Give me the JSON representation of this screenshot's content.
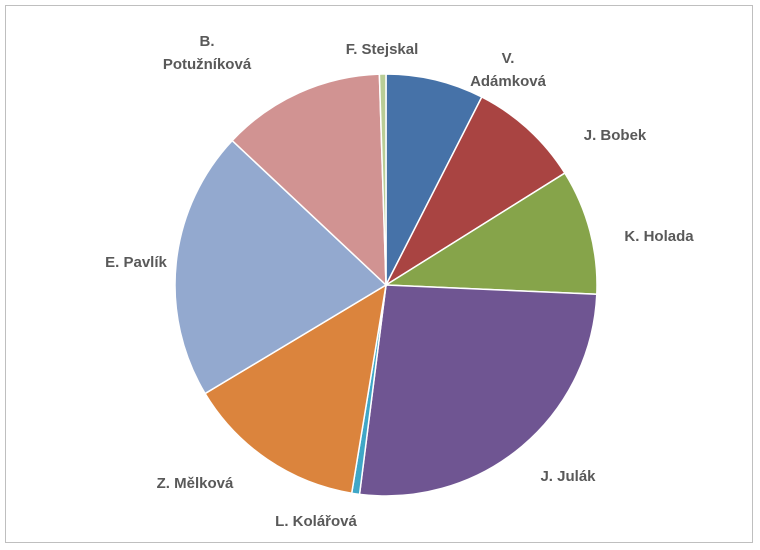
{
  "chart_data": {
    "type": "pie",
    "title": "",
    "legend": "none",
    "categories": [
      "V. Adámková",
      "J. Bobek",
      "K. Holada",
      "J. Julák",
      "L. Kolářová",
      "Z. Mělková",
      "E. Pavlík",
      "B. Potužníková",
      "F. Stejskal"
    ],
    "values": [
      7.5,
      8.6,
      9.6,
      26.3,
      0.6,
      13.8,
      20.6,
      12.5,
      0.5
    ],
    "colors": [
      "#4672a8",
      "#a94442",
      "#86a44a",
      "#6f5592",
      "#3fa7c7",
      "#db843d",
      "#93a9cf",
      "#d19392",
      "#b9cd96"
    ],
    "labels": [
      [
        "V.",
        "Adámková"
      ],
      [
        "J. Bobek"
      ],
      [
        "K. Holada"
      ],
      [
        "J. Julák"
      ],
      [
        "L. Kolářová"
      ],
      [
        "Z. Mělková"
      ],
      [
        "E. Pavlík"
      ],
      [
        "B.",
        "Potužníková"
      ],
      [
        "F. Stejskal"
      ]
    ]
  }
}
